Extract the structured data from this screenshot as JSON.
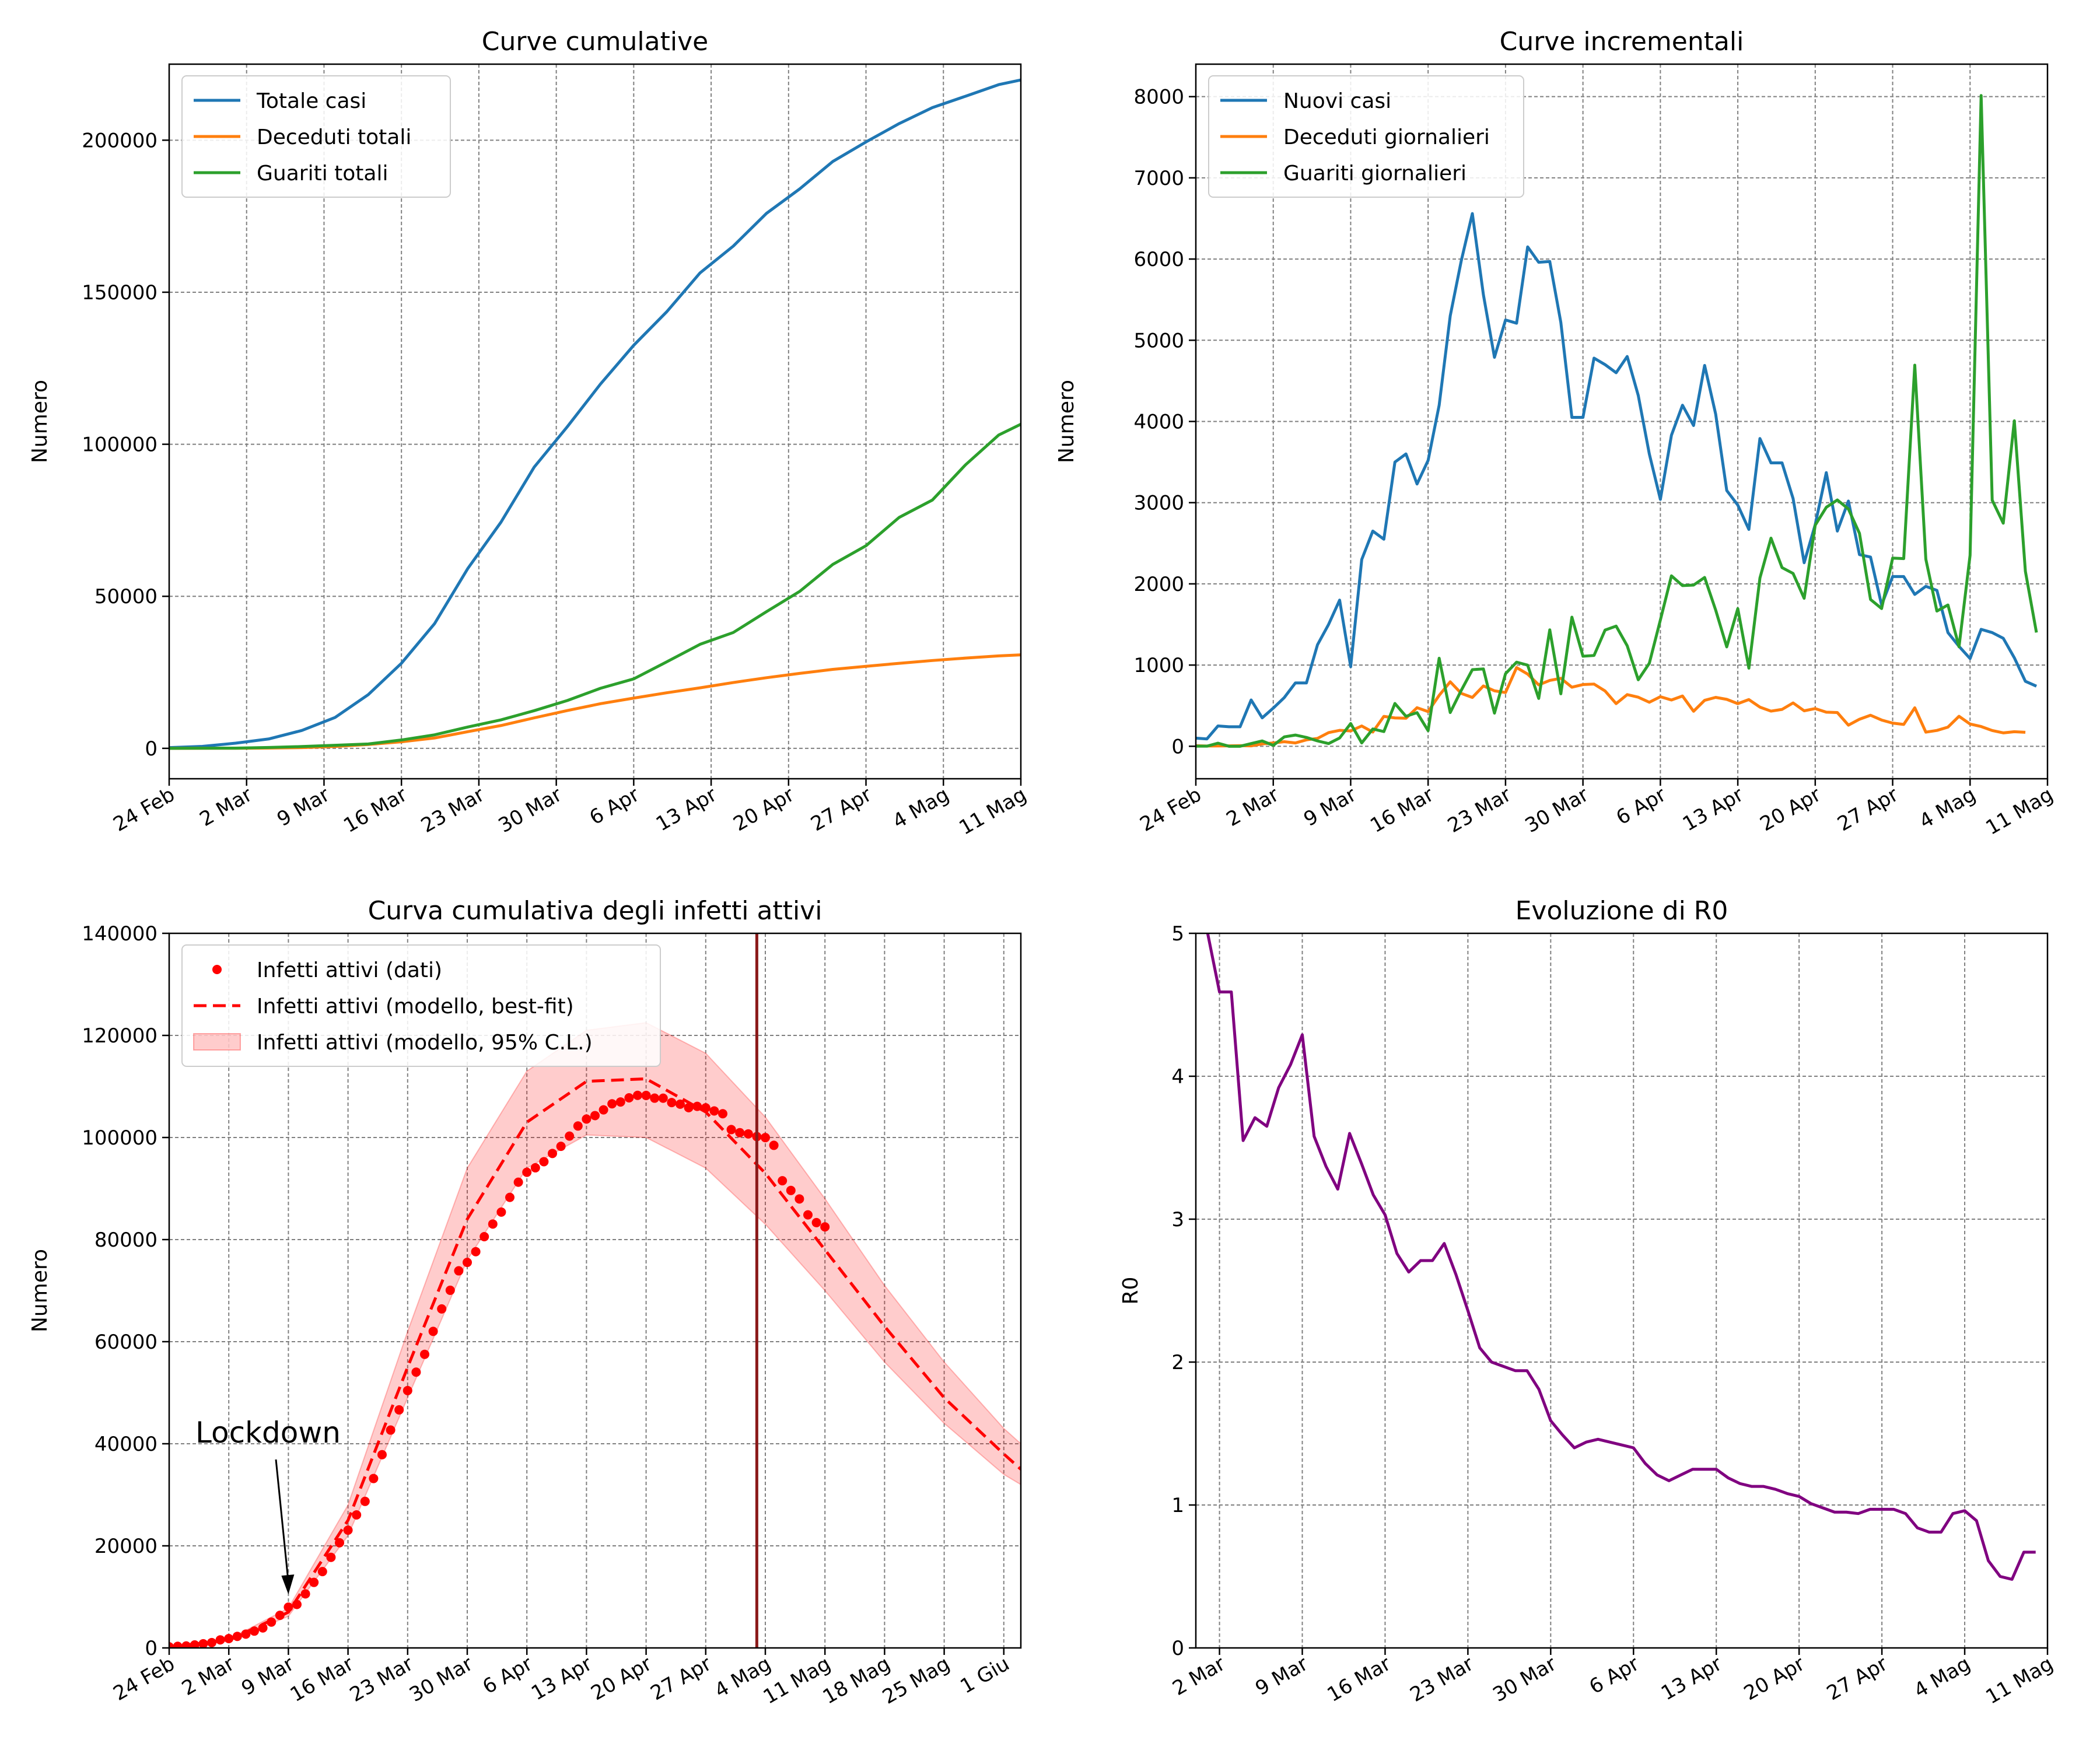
{
  "chart_data": [
    {
      "type": "line",
      "title": "Curve cumulative",
      "xlabel": "",
      "ylabel": "Numero",
      "x_start": "2020-02-24",
      "xlim": [
        "2020-02-24",
        "2020-05-11"
      ],
      "ylim": [
        -10000,
        225000
      ],
      "x_tick_labels": [
        "24 Feb",
        "2 Mar",
        "9 Mar",
        "16 Mar",
        "23 Mar",
        "30 Mar",
        "6 Apr",
        "13 Apr",
        "20 Apr",
        "27 Apr",
        "4 Mag",
        "11 Mag"
      ],
      "y_ticks": [
        0,
        50000,
        100000,
        150000,
        200000
      ],
      "grid": true,
      "legend": "upper-left",
      "x_dates": [
        "2020-02-24",
        "2020-02-27",
        "2020-03-01",
        "2020-03-04",
        "2020-03-07",
        "2020-03-10",
        "2020-03-13",
        "2020-03-16",
        "2020-03-19",
        "2020-03-22",
        "2020-03-25",
        "2020-03-28",
        "2020-03-31",
        "2020-04-03",
        "2020-04-06",
        "2020-04-09",
        "2020-04-12",
        "2020-04-15",
        "2020-04-18",
        "2020-04-21",
        "2020-04-24",
        "2020-04-27",
        "2020-04-30",
        "2020-05-03",
        "2020-05-06",
        "2020-05-09",
        "2020-05-11"
      ],
      "series": [
        {
          "name": "Totale casi",
          "color": "#1f77b4",
          "values": [
            229,
            650,
            1694,
            3089,
            5883,
            10149,
            17660,
            27980,
            41035,
            59138,
            74386,
            92472,
            105792,
            119827,
            132547,
            143626,
            156363,
            165155,
            175925,
            183957,
            192994,
            199414,
            205463,
            210717,
            214457,
            218268,
            219814
          ]
        },
        {
          "name": "Deceduti totali",
          "color": "#ff7f0e",
          "values": [
            7,
            17,
            34,
            107,
            233,
            631,
            1266,
            2158,
            3405,
            5476,
            7503,
            10023,
            12428,
            14681,
            16523,
            18279,
            19899,
            21645,
            23227,
            24648,
            25969,
            26977,
            27967,
            28884,
            29684,
            30395,
            30739
          ]
        },
        {
          "name": "Guariti totali",
          "color": "#2ca02c",
          "values": [
            1,
            45,
            83,
            276,
            589,
            1004,
            1439,
            2749,
            4440,
            7024,
            9362,
            12384,
            15729,
            19758,
            22837,
            28470,
            34211,
            38092,
            44927,
            51600,
            60498,
            66624,
            75945,
            81654,
            93245,
            103031,
            106587
          ]
        }
      ]
    },
    {
      "type": "line",
      "title": "Curve incrementali",
      "xlabel": "",
      "ylabel": "Numero",
      "x_start": "2020-02-24",
      "xlim": [
        "2020-02-24",
        "2020-05-11"
      ],
      "ylim": [
        -400,
        8400
      ],
      "x_tick_labels": [
        "24 Feb",
        "2 Mar",
        "9 Mar",
        "16 Mar",
        "23 Mar",
        "30 Mar",
        "6 Apr",
        "13 Apr",
        "20 Apr",
        "27 Apr",
        "4 Mag",
        "11 Mag"
      ],
      "y_ticks": [
        0,
        1000,
        2000,
        3000,
        4000,
        5000,
        6000,
        7000,
        8000
      ],
      "grid": true,
      "legend": "upper-left",
      "series": [
        {
          "name": "Nuovi casi",
          "color": "#1f77b4",
          "values": [
            100,
            90,
            250,
            240,
            240,
            570,
            350,
            470,
            600,
            780,
            780,
            1250,
            1500,
            1800,
            980,
            2300,
            2650,
            2550,
            3500,
            3600,
            3230,
            3520,
            4200,
            5300,
            5980,
            6560,
            5560,
            4790,
            5250,
            5210,
            6150,
            5960,
            5970,
            5220,
            4050,
            4050,
            4780,
            4700,
            4600,
            4800,
            4320,
            3600,
            3040,
            3830,
            4200,
            3950,
            4690,
            4090,
            3150,
            2970,
            2670,
            3790,
            3490,
            3490,
            3050,
            2260,
            2730,
            3370,
            2650,
            3020,
            2360,
            2330,
            1740,
            2090,
            2090,
            1870,
            1970,
            1920,
            1400,
            1230,
            1080,
            1440,
            1400,
            1330,
            1090,
            800,
            740
          ]
        },
        {
          "name": "Deceduti giornalieri",
          "color": "#ff7f0e",
          "values": [
            7,
            3,
            4,
            5,
            8,
            5,
            29,
            41,
            56,
            41,
            79,
            97,
            168,
            196,
            189,
            250,
            175,
            368,
            349,
            345,
            475,
            427,
            627,
            794,
            651,
            601,
            743,
            683,
            662,
            969,
            889,
            756,
            811,
            837,
            727,
            760,
            766,
            681,
            525,
            636,
            604,
            542,
            610,
            570,
            619,
            431,
            566,
            602,
            578,
            525,
            575,
            482,
            433,
            454,
            534,
            437,
            464,
            420,
            415,
            260,
            333,
            382,
            323,
            285,
            269,
            474,
            174,
            195,
            236,
            369,
            274,
            243,
            194,
            165,
            179,
            172
          ]
        },
        {
          "name": "Guariti giornalieri",
          "color": "#2ca02c",
          "values": [
            1,
            1,
            38,
            0,
            0,
            33,
            66,
            11,
            116,
            138,
            109,
            66,
            33,
            102,
            280,
            41,
            213,
            181,
            527,
            369,
            414,
            192,
            1084,
            415,
            689,
            943,
            952,
            408,
            894,
            1036,
            999,
            589,
            1434,
            646,
            1590,
            1109,
            1118,
            1431,
            1480,
            1238,
            819,
            1022,
            1555,
            2099,
            1979,
            1985,
            2079,
            1677,
            1224,
            1695,
            962,
            2072,
            2563,
            2200,
            2128,
            1822,
            2723,
            2943,
            3033,
            2922,
            2622,
            1808,
            1696,
            2317,
            2311,
            4693,
            2304,
            1665,
            1740,
            1225,
            2352,
            8014,
            3031,
            2747,
            4008,
            2155,
            1401
          ]
        }
      ]
    },
    {
      "type": "line",
      "title": "Curva cumulativa degli infetti attivi",
      "xlabel": "",
      "ylabel": "Numero",
      "x_start": "2020-02-24",
      "xlim": [
        "2020-02-24",
        "2020-06-03"
      ],
      "ylim": [
        0,
        140000
      ],
      "x_tick_labels": [
        "24 Feb",
        "2 Mar",
        "9 Mar",
        "16 Mar",
        "23 Mar",
        "30 Mar",
        "6 Apr",
        "13 Apr",
        "20 Apr",
        "27 Apr",
        "4 Mag",
        "11 Mag",
        "18 Mag",
        "25 Mag",
        "1 Giu"
      ],
      "y_ticks": [
        0,
        20000,
        40000,
        60000,
        80000,
        100000,
        120000,
        140000
      ],
      "grid": true,
      "legend": "upper-left",
      "vline_date": "2020-05-03",
      "vline_color": "#8b1a1a",
      "annotation": {
        "text": "Lockdown",
        "date": "2020-03-09",
        "value": 10500
      },
      "series": [
        {
          "name": "Infetti attivi (dati)",
          "kind": "points",
          "color": "#ff0000",
          "values": [
            221,
            311,
            385,
            588,
            821,
            1049,
            1577,
            1835,
            2263,
            2706,
            3296,
            3916,
            5061,
            6387,
            7985,
            8514,
            10590,
            12839,
            14955,
            17750,
            20603,
            23073,
            26062,
            28710,
            33190,
            37860,
            42681,
            46638,
            50418,
            54030,
            57521,
            62013,
            66414,
            70065,
            73880,
            75528,
            77635,
            80572,
            83049,
            85388,
            88274,
            91246,
            93187,
            94067,
            95262,
            96877,
            98273,
            100269,
            102253,
            103616,
            104291,
            105418,
            106607,
            106962,
            107771,
            108257,
            108237,
            107709,
            107699,
            106848,
            106527,
            105847,
            106103,
            105813,
            105205,
            104657,
            101551,
            100943,
            100704,
            100179,
            99980,
            98467,
            91528,
            89624,
            87961,
            84842,
            83324,
            82488
          ]
        },
        {
          "name": "Infetti attivi (modello, best-fit)",
          "kind": "dashed",
          "color": "#ff0000",
          "dates": [
            "2020-02-24",
            "2020-03-02",
            "2020-03-09",
            "2020-03-16",
            "2020-03-23",
            "2020-03-30",
            "2020-04-06",
            "2020-04-13",
            "2020-04-20",
            "2020-04-27",
            "2020-05-04",
            "2020-05-11",
            "2020-05-18",
            "2020-05-25",
            "2020-06-01",
            "2020-06-03"
          ],
          "values": [
            250,
            1500,
            7000,
            25000,
            55000,
            84000,
            103000,
            111000,
            111500,
            105000,
            93000,
            78000,
            63000,
            49000,
            38000,
            35000
          ]
        },
        {
          "name": "Infetti attivi (modello, 95% C.L.)",
          "kind": "band",
          "color": "#ff0000",
          "dates": [
            "2020-02-24",
            "2020-03-02",
            "2020-03-09",
            "2020-03-16",
            "2020-03-23",
            "2020-03-30",
            "2020-04-06",
            "2020-04-13",
            "2020-04-20",
            "2020-04-27",
            "2020-05-04",
            "2020-05-11",
            "2020-05-18",
            "2020-05-25",
            "2020-06-01",
            "2020-06-03"
          ],
          "lower": [
            200,
            1300,
            6200,
            22000,
            49000,
            76000,
            94000,
            100500,
            100000,
            94000,
            83000,
            70000,
            56000,
            44000,
            34000,
            32000
          ],
          "upper": [
            300,
            1700,
            7800,
            28000,
            62000,
            94000,
            113000,
            121000,
            122500,
            116500,
            104000,
            88000,
            71000,
            56000,
            43000,
            40000
          ]
        }
      ]
    },
    {
      "type": "line",
      "title": "Evoluzione di R0",
      "xlabel": "",
      "ylabel": "R0",
      "x_start": "2020-03-01",
      "xlim": [
        "2020-02-29",
        "2020-05-11"
      ],
      "ylim": [
        0,
        5
      ],
      "x_tick_labels": [
        "2 Mar",
        "9 Mar",
        "16 Mar",
        "23 Mar",
        "30 Mar",
        "6 Apr",
        "13 Apr",
        "20 Apr",
        "27 Apr",
        "4 Mag",
        "11 Mag"
      ],
      "y_ticks": [
        0,
        1,
        2,
        3,
        4,
        5
      ],
      "grid": true,
      "series": [
        {
          "name": "",
          "color": "#800080",
          "values": [
            5.0,
            4.59,
            4.59,
            3.55,
            3.71,
            3.65,
            3.92,
            4.08,
            4.29,
            3.58,
            3.37,
            3.21,
            3.6,
            3.39,
            3.17,
            3.03,
            2.76,
            2.63,
            2.71,
            2.71,
            2.83,
            2.61,
            2.36,
            2.1,
            2.0,
            1.97,
            1.94,
            1.94,
            1.81,
            1.59,
            1.49,
            1.4,
            1.44,
            1.46,
            1.44,
            1.42,
            1.4,
            1.29,
            1.21,
            1.17,
            1.21,
            1.25,
            1.25,
            1.25,
            1.19,
            1.15,
            1.13,
            1.13,
            1.11,
            1.08,
            1.06,
            1.01,
            0.98,
            0.95,
            0.95,
            0.94,
            0.97,
            0.97,
            0.97,
            0.94,
            0.84,
            0.81,
            0.81,
            0.94,
            0.96,
            0.89,
            0.61,
            0.5,
            0.48,
            0.67,
            0.67
          ]
        }
      ]
    }
  ]
}
